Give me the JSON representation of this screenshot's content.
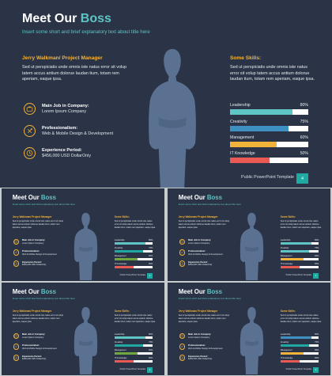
{
  "slide": {
    "title_plain": "Meet Our",
    "title_accent": "Boss",
    "subtitle": "Insert some short and brief explanatory text about title here",
    "person_heading": "Jerry Walkman/ Project Manager",
    "person_text": "Sed ut perspiciatis unde omnis iste natus error sit volup tatem accus antium dolorue laudan tium, totam rem aperiam, eaque ipsa.",
    "details": [
      {
        "icon": "briefcase-icon",
        "label": "Main Job in Company:",
        "value": "Lorem Ipsum Company"
      },
      {
        "icon": "tools-icon",
        "label": "Professionalism:",
        "value": "Web & Mobile Design & Development"
      },
      {
        "icon": "clock-icon",
        "label": "Experience Period:",
        "value": "$456,000 USD DollarOnly"
      }
    ],
    "skills_heading": "Some Skills:",
    "skills_text": "Sed ut perspiciatis unde omnis iste natus error sit volup tatem accus antium dolorue laudan tium, totam rem aperiam, eaque ipsa.",
    "skills": [
      {
        "name": "Leadership",
        "percent_label": "80%",
        "level": 0.8,
        "color": "#5ec4c4"
      },
      {
        "name": "Creativity",
        "percent_label": "75%",
        "level": 0.75,
        "color": "#3e8fc2"
      },
      {
        "name": "Management",
        "percent_label": "60%",
        "level": 0.6,
        "color": "#f2b33a"
      },
      {
        "name": "IT Knowledge",
        "percent_label": "50%",
        "level": 0.5,
        "color": "#ea5a55"
      }
    ],
    "footer": "Public PowerPoint Template",
    "page_number": "4"
  },
  "thumb_skill_colors": [
    [
      "#5ec4c4",
      "#1fa9a2",
      "#6ea83f",
      "#ea5a55"
    ],
    [
      "#5ec4c4",
      "#5ec4c4",
      "#f2b33a",
      "#ea5a55"
    ],
    [
      "#5ec4c4",
      "#1fa9a2",
      "#6ea83f",
      "#ea5a55"
    ],
    [
      "#3e8fc2",
      "#1fa9a2",
      "#f2b33a",
      "#ea5a55"
    ]
  ]
}
